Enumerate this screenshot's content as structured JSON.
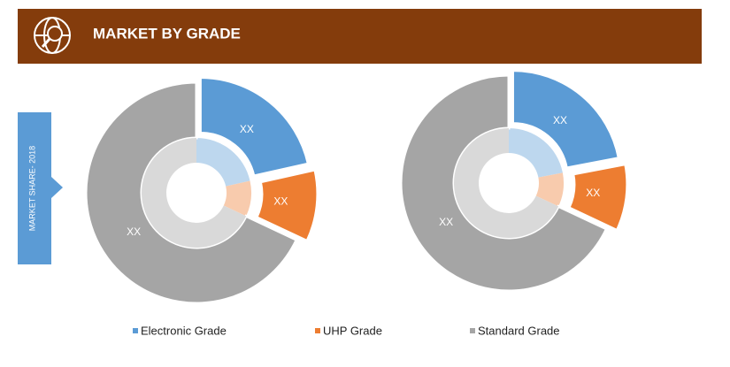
{
  "chart_data": {
    "type": "donut",
    "title": "MARKET BY GRADE",
    "y_label": "MARKET SHARE- 2018",
    "categories": [
      "Electronic Grade",
      "UHP Grade",
      "Standard Grade"
    ],
    "colors": [
      "#5b9bd5",
      "#ed7d31",
      "#a5a5a5"
    ],
    "inner_colors": [
      "#bdd7ee",
      "#f8cbad",
      "#d9d9d9"
    ],
    "series": [
      {
        "values": [
          21.5,
          10.5,
          68
        ],
        "value_labels": [
          "XX",
          "XX",
          "XX"
        ]
      },
      {
        "values": [
          22,
          10,
          68
        ],
        "value_labels": [
          "XX",
          "XX",
          "XX"
        ]
      }
    ]
  }
}
